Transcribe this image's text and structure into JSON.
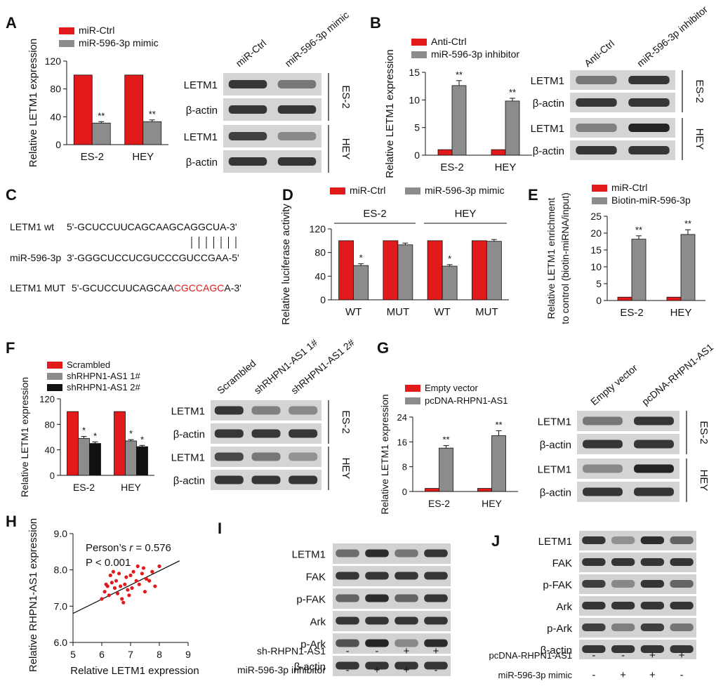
{
  "panels": {
    "A": {
      "letter": "A",
      "chart_data": {
        "type": "bar",
        "categories": [
          "ES-2",
          "HEY"
        ],
        "ylabel": "Relative LETM1 expression",
        "ylim": [
          0,
          120
        ],
        "yticks": [
          "0",
          "40",
          "80",
          "120"
        ],
        "series": [
          {
            "name": "miR-Ctrl",
            "color": "#e31a1c",
            "values": [
              100,
              100
            ],
            "errors": [
              0,
              0
            ],
            "sig": [
              "",
              ""
            ]
          },
          {
            "name": "miR-596-3p mimic",
            "color": "#8c8c8c",
            "values": [
              31,
              33
            ],
            "errors": [
              2,
              2.5
            ],
            "sig": [
              "**",
              "**"
            ]
          }
        ]
      },
      "blot": {
        "lanes": [
          "miR-Ctrl",
          "miR-596-3p mimic"
        ],
        "rows": [
          "LETM1",
          "β-actin",
          "LETM1",
          "β-actin"
        ],
        "groups": [
          "ES-2",
          "HEY"
        ]
      }
    },
    "B": {
      "letter": "B",
      "chart_data": {
        "type": "bar",
        "categories": [
          "ES-2",
          "HEY"
        ],
        "ylabel": "Relative LETM1 expression",
        "ylim": [
          0,
          15
        ],
        "yticks": [
          "0",
          "5",
          "10",
          "15"
        ],
        "series": [
          {
            "name": "Anti-Ctrl",
            "color": "#e31a1c",
            "values": [
              1,
              1
            ],
            "errors": [
              0,
              0
            ],
            "sig": [
              "",
              ""
            ]
          },
          {
            "name": "miR-596-3p inhibitor",
            "color": "#8c8c8c",
            "values": [
              12.6,
              9.8
            ],
            "errors": [
              0.9,
              0.5
            ],
            "sig": [
              "**",
              "**"
            ]
          }
        ]
      },
      "blot": {
        "lanes": [
          "Anti-Ctrl",
          "miR-596-3p inhibitor"
        ],
        "rows": [
          "LETM1",
          "β-actin",
          "LETM1",
          "β-actin"
        ],
        "groups": [
          "ES-2",
          "HEY"
        ]
      }
    },
    "C": {
      "letter": "C",
      "rows": [
        {
          "label": "LETM1 wt",
          "seq": "5'-GCUCCUUCAGCAAGCAGGCUA-3'",
          "pre": "",
          "highlight": "",
          "post": ""
        },
        {
          "label": "miR-596-3p",
          "seq": "3'-GGGCUCCUCGUCCCGUCCGAA-5'",
          "pre": "",
          "highlight": "",
          "post": ""
        },
        {
          "label": "LETM1 MUT",
          "seq": "",
          "pre": "5'-GCUCCUUCAGCAA",
          "highlight": "CGCCAGC",
          "post": "A-3'"
        }
      ],
      "highlight_color": "#e31a1c"
    },
    "D": {
      "letter": "D",
      "group_labels": [
        "ES-2",
        "HEY"
      ],
      "chart_data": {
        "type": "bar",
        "categories": [
          "WT",
          "MUT",
          "WT",
          "MUT"
        ],
        "ylabel": "Relative luciferase activity",
        "ylim": [
          0,
          120
        ],
        "yticks": [
          "0",
          "40",
          "80",
          "120"
        ],
        "series": [
          {
            "name": "miR-Ctrl",
            "color": "#e31a1c",
            "values": [
              100,
              100,
              100,
              100
            ],
            "errors": [
              0,
              0,
              0,
              0
            ],
            "sig": [
              "",
              "",
              "",
              ""
            ]
          },
          {
            "name": "miR-596-3p mimic",
            "color": "#8c8c8c",
            "values": [
              58,
              93,
              57,
              99
            ],
            "errors": [
              3,
              3,
              2.5,
              3
            ],
            "sig": [
              "*",
              "",
              "*",
              ""
            ]
          }
        ]
      }
    },
    "E": {
      "letter": "E",
      "chart_data": {
        "type": "bar",
        "categories": [
          "ES-2",
          "HEY"
        ],
        "ylabel": "Relative LETM1 enrichment",
        "ylabel2": "to control (biotin-miRNA/input)",
        "ylim": [
          0,
          25
        ],
        "yticks": [
          "0",
          "5",
          "10",
          "15",
          "20",
          "25"
        ],
        "series": [
          {
            "name": "miR-Ctrl",
            "color": "#e31a1c",
            "values": [
              1,
              1
            ],
            "errors": [
              0,
              0
            ],
            "sig": [
              "",
              ""
            ]
          },
          {
            "name": "Biotin-miR-596-3p",
            "color": "#8c8c8c",
            "values": [
              18.2,
              19.6
            ],
            "errors": [
              1,
              1.4
            ],
            "sig": [
              "**",
              "**"
            ]
          }
        ]
      }
    },
    "F": {
      "letter": "F",
      "chart_data": {
        "type": "bar",
        "categories": [
          "ES-2",
          "HEY"
        ],
        "ylabel": "Relative LETM1 expression",
        "ylim": [
          0,
          120
        ],
        "yticks": [
          "0",
          "40",
          "80",
          "120"
        ],
        "series": [
          {
            "name": "Scrambled",
            "color": "#e31a1c",
            "values": [
              100,
              100
            ],
            "errors": [
              0,
              0
            ],
            "sig": [
              "",
              ""
            ]
          },
          {
            "name": "shRHPN1-AS1  1#",
            "color": "#8c8c8c",
            "values": [
              58,
              54
            ],
            "errors": [
              3,
              2
            ],
            "sig": [
              "*",
              "*"
            ]
          },
          {
            "name": "shRHPN1-AS1  2#",
            "color": "#111111",
            "values": [
              50,
              45
            ],
            "errors": [
              2.5,
              2
            ],
            "sig": [
              "*",
              "*"
            ]
          }
        ]
      },
      "blot": {
        "lanes": [
          "Scrambled",
          "shRHPN1-AS1 1#",
          "shRHPN1-AS1 2#"
        ],
        "rows": [
          "LETM1",
          "β-actin",
          "LETM1",
          "β-actin"
        ],
        "groups": [
          "ES-2",
          "HEY"
        ]
      }
    },
    "G": {
      "letter": "G",
      "chart_data": {
        "type": "bar",
        "categories": [
          "ES-2",
          "HEY"
        ],
        "ylabel": "Relative LETM1 expression",
        "ylim": [
          0,
          24
        ],
        "yticks": [
          "0",
          "8",
          "16",
          "24"
        ],
        "series": [
          {
            "name": "Empty vector",
            "color": "#e31a1c",
            "values": [
              1,
              1
            ],
            "errors": [
              0,
              0
            ],
            "sig": [
              "",
              ""
            ]
          },
          {
            "name": "pcDNA-RHPN1-AS1",
            "color": "#8c8c8c",
            "values": [
              14,
              18
            ],
            "errors": [
              0.8,
              1.6
            ],
            "sig": [
              "**",
              "**"
            ]
          }
        ]
      },
      "blot": {
        "lanes": [
          "Empty vector",
          "pcDNA-RHPN1-AS1"
        ],
        "rows": [
          "LETM1",
          "β-actin",
          "LETM1",
          "β-actin"
        ],
        "groups": [
          "ES-2",
          "HEY"
        ]
      }
    },
    "H": {
      "letter": "H",
      "chart_data": {
        "type": "scatter",
        "xlabel": "Relative LETM1 expression",
        "ylabel": "Relative RHPN1-AS1 expression",
        "xlim": [
          5,
          9
        ],
        "ylim": [
          6,
          9
        ],
        "xticks": [
          "5",
          "6",
          "7",
          "8",
          "9"
        ],
        "yticks": [
          "6.0",
          "7.0",
          "8.0",
          "9.0"
        ],
        "stat_prefix": "Person’s ",
        "stat_r_symbol": "r",
        "stat_r_value": " = 0.576",
        "stat_p": "P < 0.001",
        "point_color": "#e31a1c",
        "fit_line": [
          [
            5,
            6.8
          ],
          [
            8.7,
            8.25
          ]
        ],
        "points": [
          [
            6.0,
            7.2
          ],
          [
            6.1,
            7.4
          ],
          [
            6.2,
            7.55
          ],
          [
            6.25,
            7.3
          ],
          [
            6.3,
            7.85
          ],
          [
            6.35,
            7.65
          ],
          [
            6.4,
            7.95
          ],
          [
            6.45,
            7.5
          ],
          [
            6.5,
            7.7
          ],
          [
            6.55,
            7.35
          ],
          [
            6.6,
            7.9
          ],
          [
            6.65,
            7.55
          ],
          [
            6.7,
            7.2
          ],
          [
            6.75,
            7.1
          ],
          [
            6.8,
            7.6
          ],
          [
            6.85,
            7.8
          ],
          [
            6.9,
            7.45
          ],
          [
            7.0,
            7.85
          ],
          [
            7.05,
            7.5
          ],
          [
            7.1,
            7.95
          ],
          [
            7.2,
            7.7
          ],
          [
            7.25,
            8.1
          ],
          [
            7.3,
            7.6
          ],
          [
            7.4,
            7.9
          ],
          [
            7.45,
            8.05
          ],
          [
            7.5,
            7.4
          ],
          [
            7.55,
            7.75
          ],
          [
            7.65,
            7.7
          ],
          [
            7.75,
            7.95
          ],
          [
            7.85,
            7.55
          ],
          [
            8.0,
            8.1
          ],
          [
            6.15,
            7.6
          ],
          [
            6.95,
            7.3
          ]
        ]
      }
    },
    "I": {
      "letter": "I",
      "blot": {
        "rows": [
          "LETM1",
          "FAK",
          "p-FAK",
          "Ark",
          "p-Ark",
          "β-actin"
        ],
        "conditions": [
          {
            "name": "sh-RHPN1-AS1",
            "marks": [
              "-",
              "-",
              "+",
              "+"
            ]
          },
          {
            "name": "miR-596-3p inhibitor",
            "marks": [
              "-",
              "+",
              "+",
              "-"
            ]
          }
        ]
      }
    },
    "J": {
      "letter": "J",
      "blot": {
        "rows": [
          "LETM1",
          "FAK",
          "p-FAK",
          "Ark",
          "p-Ark",
          "β-actin"
        ],
        "conditions": [
          {
            "name": "pcDNA-RHPN1-AS1",
            "marks": [
              "-",
              "-",
              "+",
              "+"
            ]
          },
          {
            "name": "miR-596-3p mimic",
            "marks": [
              "-",
              "+",
              "+",
              "-"
            ]
          }
        ]
      }
    }
  }
}
